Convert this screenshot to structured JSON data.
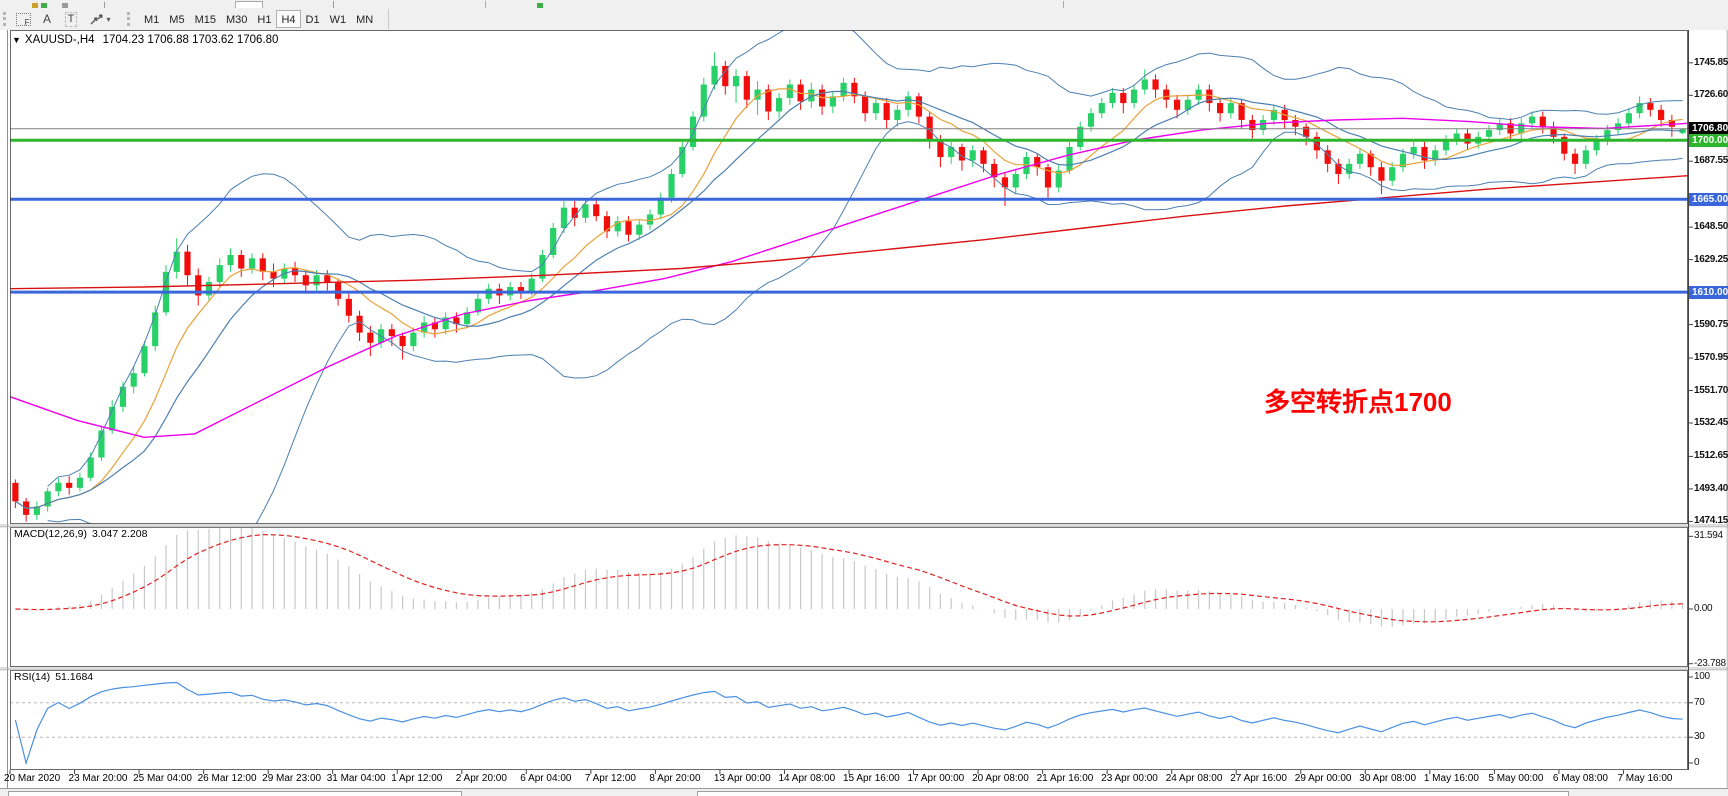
{
  "toolbar": {
    "grid_icon_letter": "F",
    "icon_a": "A",
    "icon_t": "T",
    "dropdown_caret": "▾",
    "timeframes": [
      "M1",
      "M5",
      "M15",
      "M30",
      "H1",
      "H4",
      "D1",
      "W1",
      "MN"
    ],
    "active_timeframe": "H4"
  },
  "chart_header": {
    "caret": "▼",
    "symbol": "XAUUSD-,H4",
    "ohlc": "1704.23 1706.88 1703.62 1706.80"
  },
  "annotation": {
    "text": "多空转折点1700",
    "color": "#FF0000"
  },
  "price_axis": {
    "ticks": [
      {
        "v": 1745.85,
        "label": "1745.85"
      },
      {
        "v": 1726.6,
        "label": "1726.60"
      },
      {
        "v": 1687.55,
        "label": "1687.55"
      },
      {
        "v": 1648.5,
        "label": "1648.50"
      },
      {
        "v": 1629.25,
        "label": "1629.25"
      },
      {
        "v": 1590.75,
        "label": "1590.75"
      },
      {
        "v": 1570.95,
        "label": "1570.95"
      },
      {
        "v": 1551.7,
        "label": "1551.70"
      },
      {
        "v": 1532.45,
        "label": "1532.45"
      },
      {
        "v": 1512.65,
        "label": "1512.65"
      },
      {
        "v": 1493.4,
        "label": "1493.40"
      },
      {
        "v": 1474.15,
        "label": "1474.15"
      }
    ]
  },
  "time_axis": {
    "labels": [
      "20 Mar 2020",
      "23 Mar 20:00",
      "25 Mar 04:00",
      "26 Mar 12:00",
      "29 Mar 23:00",
      "31 Mar 04:00",
      "1 Apr 12:00",
      "2 Apr 20:00",
      "6 Apr 04:00",
      "7 Apr 12:00",
      "8 Apr 20:00",
      "13 Apr 00:00",
      "14 Apr 08:00",
      "15 Apr 16:00",
      "17 Apr 00:00",
      "20 Apr 08:00",
      "21 Apr 16:00",
      "23 Apr 00:00",
      "24 Apr 08:00",
      "27 Apr 16:00",
      "29 Apr 00:00",
      "30 Apr 08:00",
      "1 May 16:00",
      "5 May 00:00",
      "6 May 08:00",
      "7 May 16:00"
    ]
  },
  "panes": {
    "macd": {
      "label": "MACD(12,26,9)",
      "values": "3.047 2.208",
      "axis": [
        {
          "v": 31.594,
          "label": "31.594"
        },
        {
          "v": 0,
          "label": "0.00"
        },
        {
          "v": -23.788,
          "label": "-23.788"
        }
      ]
    },
    "rsi": {
      "label": "RSI(14)",
      "value": "51.1684",
      "axis": [
        {
          "v": 100,
          "label": "100"
        },
        {
          "v": 70,
          "label": "70"
        },
        {
          "v": 30,
          "label": "30"
        },
        {
          "v": 0,
          "label": "0"
        }
      ],
      "levels": [
        70,
        30
      ]
    }
  },
  "chart_data": {
    "type": "candlestick",
    "title": "XAUUSD-,H4 1704.23 1706.88 1703.62 1706.80",
    "symbol": "XAUUSD-",
    "timeframe": "H4",
    "price_axis_range": [
      1472.6,
      1765.3
    ],
    "colors": {
      "up": "#27D168",
      "down": "#F20D0D",
      "bollinger": "#4C7FB0",
      "ma_fast_orange": "#E8A23A",
      "ma_mid_blue": "#4C7FB0",
      "ma_slow_magenta": "#EE00EE",
      "ma_long_red": "#D91111",
      "macd_hist": "#C8C8C8",
      "macd_signal": "#E02020",
      "rsi_line": "#4A90E2"
    },
    "candles": [
      [
        1497,
        1499,
        1482,
        1486
      ],
      [
        1486,
        1488,
        1474,
        1478
      ],
      [
        1478,
        1486,
        1475,
        1483
      ],
      [
        1483,
        1494,
        1480,
        1492
      ],
      [
        1492,
        1500,
        1489,
        1497
      ],
      [
        1497,
        1501,
        1490,
        1494
      ],
      [
        1494,
        1503,
        1492,
        1500
      ],
      [
        1500,
        1515,
        1498,
        1512
      ],
      [
        1512,
        1531,
        1510,
        1528
      ],
      [
        1528,
        1546,
        1526,
        1542
      ],
      [
        1542,
        1557,
        1539,
        1554
      ],
      [
        1554,
        1566,
        1550,
        1562
      ],
      [
        1562,
        1581,
        1560,
        1578
      ],
      [
        1578,
        1602,
        1575,
        1598
      ],
      [
        1598,
        1626,
        1596,
        1622
      ],
      [
        1622,
        1642,
        1618,
        1634
      ],
      [
        1634,
        1638,
        1614,
        1620
      ],
      [
        1620,
        1624,
        1602,
        1608
      ],
      [
        1608,
        1619,
        1605,
        1616
      ],
      [
        1616,
        1630,
        1613,
        1626
      ],
      [
        1626,
        1636,
        1622,
        1632
      ],
      [
        1632,
        1635,
        1619,
        1624
      ],
      [
        1624,
        1633,
        1621,
        1630
      ],
      [
        1630,
        1633,
        1617,
        1622
      ],
      [
        1622,
        1627,
        1613,
        1618
      ],
      [
        1618,
        1627,
        1615,
        1624
      ],
      [
        1624,
        1628,
        1616,
        1620
      ],
      [
        1620,
        1623,
        1609,
        1614
      ],
      [
        1614,
        1623,
        1611,
        1620
      ],
      [
        1620,
        1623,
        1611,
        1616
      ],
      [
        1616,
        1618,
        1602,
        1606
      ],
      [
        1606,
        1609,
        1592,
        1596
      ],
      [
        1596,
        1599,
        1581,
        1586
      ],
      [
        1586,
        1590,
        1572,
        1580
      ],
      [
        1580,
        1591,
        1577,
        1588
      ],
      [
        1588,
        1591,
        1578,
        1584
      ],
      [
        1584,
        1586,
        1570,
        1578
      ],
      [
        1578,
        1589,
        1575,
        1586
      ],
      [
        1586,
        1596,
        1583,
        1592
      ],
      [
        1592,
        1595,
        1583,
        1588
      ],
      [
        1588,
        1598,
        1585,
        1595
      ],
      [
        1595,
        1598,
        1586,
        1591
      ],
      [
        1591,
        1601,
        1589,
        1598
      ],
      [
        1598,
        1609,
        1596,
        1606
      ],
      [
        1606,
        1615,
        1603,
        1612
      ],
      [
        1612,
        1615,
        1603,
        1608
      ],
      [
        1608,
        1616,
        1605,
        1613
      ],
      [
        1613,
        1616,
        1606,
        1610
      ],
      [
        1610,
        1621,
        1608,
        1618
      ],
      [
        1618,
        1635,
        1616,
        1632
      ],
      [
        1632,
        1651,
        1630,
        1648
      ],
      [
        1648,
        1664,
        1645,
        1660
      ],
      [
        1660,
        1664,
        1649,
        1654
      ],
      [
        1654,
        1665,
        1651,
        1662
      ],
      [
        1662,
        1666,
        1652,
        1655
      ],
      [
        1655,
        1658,
        1642,
        1646
      ],
      [
        1646,
        1655,
        1643,
        1652
      ],
      [
        1652,
        1655,
        1640,
        1644
      ],
      [
        1644,
        1653,
        1641,
        1650
      ],
      [
        1650,
        1659,
        1647,
        1656
      ],
      [
        1656,
        1669,
        1653,
        1666
      ],
      [
        1666,
        1683,
        1663,
        1680
      ],
      [
        1680,
        1699,
        1678,
        1696
      ],
      [
        1696,
        1717,
        1694,
        1714
      ],
      [
        1714,
        1737,
        1711,
        1733
      ],
      [
        1733,
        1752,
        1730,
        1744
      ],
      [
        1744,
        1747,
        1727,
        1732
      ],
      [
        1732,
        1742,
        1722,
        1738
      ],
      [
        1738,
        1741,
        1719,
        1724
      ],
      [
        1724,
        1735,
        1715,
        1730
      ],
      [
        1730,
        1733,
        1712,
        1717
      ],
      [
        1717,
        1728,
        1713,
        1725
      ],
      [
        1725,
        1736,
        1721,
        1733
      ],
      [
        1733,
        1736,
        1718,
        1723
      ],
      [
        1723,
        1734,
        1719,
        1730
      ],
      [
        1730,
        1733,
        1715,
        1720
      ],
      [
        1720,
        1729,
        1716,
        1726
      ],
      [
        1726,
        1737,
        1723,
        1734
      ],
      [
        1734,
        1737,
        1722,
        1726
      ],
      [
        1726,
        1729,
        1711,
        1716
      ],
      [
        1716,
        1725,
        1712,
        1722
      ],
      [
        1722,
        1725,
        1707,
        1712
      ],
      [
        1712,
        1721,
        1708,
        1718
      ],
      [
        1718,
        1729,
        1714,
        1726
      ],
      [
        1726,
        1728,
        1710,
        1714
      ],
      [
        1714,
        1717,
        1695,
        1700
      ],
      [
        1700,
        1703,
        1684,
        1690
      ],
      [
        1690,
        1699,
        1686,
        1696
      ],
      [
        1696,
        1698,
        1682,
        1688
      ],
      [
        1688,
        1697,
        1684,
        1694
      ],
      [
        1694,
        1696,
        1681,
        1686
      ],
      [
        1686,
        1689,
        1672,
        1678
      ],
      [
        1678,
        1681,
        1661,
        1672
      ],
      [
        1672,
        1683,
        1668,
        1680
      ],
      [
        1680,
        1693,
        1677,
        1690
      ],
      [
        1690,
        1692,
        1679,
        1684
      ],
      [
        1684,
        1686,
        1666,
        1672
      ],
      [
        1672,
        1685,
        1669,
        1682
      ],
      [
        1682,
        1699,
        1680,
        1696
      ],
      [
        1696,
        1711,
        1694,
        1708
      ],
      [
        1708,
        1719,
        1705,
        1716
      ],
      [
        1716,
        1725,
        1713,
        1722
      ],
      [
        1722,
        1731,
        1719,
        1728
      ],
      [
        1728,
        1731,
        1716,
        1722
      ],
      [
        1722,
        1733,
        1719,
        1730
      ],
      [
        1730,
        1742,
        1727,
        1736
      ],
      [
        1736,
        1739,
        1725,
        1730
      ],
      [
        1730,
        1733,
        1719,
        1724
      ],
      [
        1724,
        1727,
        1713,
        1718
      ],
      [
        1718,
        1727,
        1715,
        1724
      ],
      [
        1724,
        1733,
        1721,
        1730
      ],
      [
        1730,
        1733,
        1717,
        1722
      ],
      [
        1722,
        1725,
        1711,
        1716
      ],
      [
        1716,
        1725,
        1713,
        1722
      ],
      [
        1722,
        1724,
        1707,
        1712
      ],
      [
        1712,
        1715,
        1701,
        1706
      ],
      [
        1706,
        1715,
        1703,
        1712
      ],
      [
        1712,
        1721,
        1709,
        1718
      ],
      [
        1718,
        1721,
        1707,
        1712
      ],
      [
        1712,
        1715,
        1703,
        1708
      ],
      [
        1708,
        1710,
        1697,
        1702
      ],
      [
        1702,
        1705,
        1689,
        1694
      ],
      [
        1694,
        1697,
        1681,
        1686
      ],
      [
        1686,
        1689,
        1674,
        1680
      ],
      [
        1680,
        1689,
        1677,
        1686
      ],
      [
        1686,
        1695,
        1683,
        1692
      ],
      [
        1692,
        1694,
        1679,
        1684
      ],
      [
        1684,
        1687,
        1668,
        1676
      ],
      [
        1676,
        1687,
        1673,
        1684
      ],
      [
        1684,
        1695,
        1681,
        1692
      ],
      [
        1692,
        1699,
        1689,
        1696
      ],
      [
        1696,
        1699,
        1683,
        1688
      ],
      [
        1688,
        1697,
        1685,
        1694
      ],
      [
        1694,
        1703,
        1691,
        1700
      ],
      [
        1700,
        1707,
        1697,
        1704
      ],
      [
        1704,
        1707,
        1694,
        1698
      ],
      [
        1698,
        1705,
        1695,
        1702
      ],
      [
        1702,
        1709,
        1699,
        1706
      ],
      [
        1706,
        1713,
        1703,
        1710
      ],
      [
        1710,
        1713,
        1700,
        1704
      ],
      [
        1704,
        1713,
        1701,
        1710
      ],
      [
        1710,
        1717,
        1707,
        1714
      ],
      [
        1714,
        1717,
        1704,
        1708
      ],
      [
        1708,
        1711,
        1698,
        1702
      ],
      [
        1702,
        1704,
        1688,
        1692
      ],
      [
        1692,
        1695,
        1680,
        1686
      ],
      [
        1686,
        1697,
        1683,
        1694
      ],
      [
        1694,
        1703,
        1691,
        1700
      ],
      [
        1700,
        1709,
        1697,
        1706
      ],
      [
        1706,
        1713,
        1703,
        1710
      ],
      [
        1710,
        1719,
        1707,
        1716
      ],
      [
        1716,
        1726,
        1713,
        1722
      ],
      [
        1722,
        1725,
        1714,
        1718
      ],
      [
        1718,
        1721,
        1708,
        1712
      ],
      [
        1712,
        1715,
        1702,
        1708
      ],
      [
        1704.23,
        1706.88,
        1703.62,
        1706.8
      ]
    ],
    "overlays": [
      {
        "name": "bollinger-upper",
        "calc": "bb_upper",
        "period": 20,
        "dev": 2,
        "color": "#4C7FB0",
        "width": 1
      },
      {
        "name": "bollinger-lower",
        "calc": "bb_lower",
        "period": 20,
        "dev": 2,
        "color": "#4C7FB0",
        "width": 1
      },
      {
        "name": "ma-fast-orange",
        "calc": "sma",
        "period": 8,
        "color": "#E8A23A",
        "width": 1.2
      },
      {
        "name": "ma-mid-blue",
        "calc": "sma",
        "period": 13,
        "color": "#4C7FB0",
        "width": 1.2
      },
      {
        "name": "ma-slow-magenta",
        "calc": "points",
        "color": "#EE00EE",
        "width": 1.4,
        "points": [
          [
            0,
            1548
          ],
          [
            0.04,
            1534
          ],
          [
            0.08,
            1524
          ],
          [
            0.11,
            1526
          ],
          [
            0.15,
            1546
          ],
          [
            0.19,
            1566
          ],
          [
            0.23,
            1584
          ],
          [
            0.27,
            1597
          ],
          [
            0.31,
            1605
          ],
          [
            0.35,
            1611
          ],
          [
            0.39,
            1618
          ],
          [
            0.43,
            1628
          ],
          [
            0.47,
            1641
          ],
          [
            0.51,
            1654
          ],
          [
            0.55,
            1667
          ],
          [
            0.59,
            1680
          ],
          [
            0.63,
            1691
          ],
          [
            0.67,
            1700
          ],
          [
            0.71,
            1706
          ],
          [
            0.75,
            1710
          ],
          [
            0.79,
            1712
          ],
          [
            0.83,
            1713
          ],
          [
            0.87,
            1711
          ],
          [
            0.91,
            1708
          ],
          [
            0.95,
            1707
          ],
          [
            1,
            1710
          ]
        ]
      },
      {
        "name": "ma-long-red",
        "calc": "points",
        "color": "#D91111",
        "width": 1.4,
        "points": [
          [
            0,
            1612
          ],
          [
            0.08,
            1613
          ],
          [
            0.16,
            1615
          ],
          [
            0.24,
            1617
          ],
          [
            0.32,
            1620
          ],
          [
            0.4,
            1624
          ],
          [
            0.46,
            1629
          ],
          [
            0.52,
            1635
          ],
          [
            0.58,
            1641
          ],
          [
            0.64,
            1648
          ],
          [
            0.7,
            1655
          ],
          [
            0.76,
            1661
          ],
          [
            0.82,
            1666
          ],
          [
            0.88,
            1671
          ],
          [
            0.94,
            1675
          ],
          [
            1,
            1679
          ]
        ]
      }
    ],
    "hlines": [
      {
        "price": 1706.8,
        "label": "1706.80",
        "color": "#808080",
        "width": 1,
        "badge": "#000000"
      },
      {
        "price": 1700,
        "label": "1700.00",
        "color": "#2DB52D",
        "width": 3,
        "badge": "#2DB52D"
      },
      {
        "price": 1665,
        "label": "1665.00",
        "color": "#3A66DB",
        "width": 3,
        "badge": "#3A66DB"
      },
      {
        "price": 1610,
        "label": "1610.00",
        "color": "#3A66DB",
        "width": 3,
        "badge": "#3A66DB"
      }
    ],
    "indicators": {
      "macd": {
        "fast": 12,
        "slow": 26,
        "signal": 9,
        "current_main": 3.047,
        "current_signal": 2.208,
        "axis_max": 31.594,
        "axis_min": -23.788
      },
      "rsi": {
        "period": 14,
        "current": 51.1684,
        "levels": [
          70,
          30
        ],
        "axis": [
          100,
          70,
          30,
          0
        ]
      }
    }
  }
}
